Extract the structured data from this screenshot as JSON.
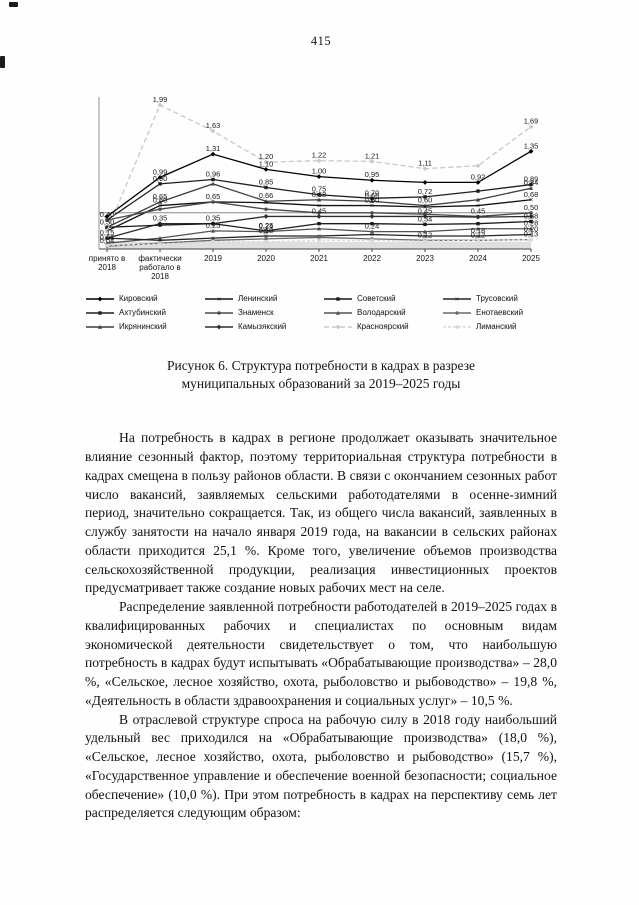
{
  "page": {
    "number": "415"
  },
  "figure": {
    "caption_line1": "Рисунок 6. Структура потребности в кадрах в разрезе",
    "caption_line2": "муниципальных образований за 2019–2025 годы"
  },
  "chart_data": {
    "type": "line",
    "title": "",
    "xlabel": "",
    "ylabel": "",
    "ylim": [
      0,
      2.1
    ],
    "grid_y": [
      0.5
    ],
    "legend_position": "bottom",
    "categories": [
      "принято в 2018",
      "фактически работало в 2018",
      "2019",
      "2020",
      "2021",
      "2022",
      "2023",
      "2024",
      "2025"
    ],
    "category_labels": [
      [
        "принято в",
        "2018"
      ],
      [
        "фактически",
        "работало в",
        "2018"
      ],
      [
        "2019"
      ],
      [
        "2020"
      ],
      [
        "2021"
      ],
      [
        "2022"
      ],
      [
        "2023"
      ],
      [
        "2024"
      ],
      [
        "2025"
      ]
    ],
    "series": [
      {
        "name": "Кировский",
        "color": "#000000",
        "dash": null,
        "marker": "diamond",
        "values": [
          0.45,
          0.99,
          1.31,
          1.1,
          1.0,
          0.95,
          0.92,
          0.92,
          1.35
        ],
        "point_labels": [
          null,
          "0,99",
          "1,31",
          "1,10",
          "1,00",
          "0,95",
          null,
          "0,92",
          "1,35"
        ]
      },
      {
        "name": "Ахтубинский",
        "color": "#1f1f1f",
        "dash": null,
        "marker": "square",
        "values": [
          0.4,
          0.9,
          0.96,
          0.85,
          0.75,
          0.7,
          0.72,
          0.8,
          0.89
        ],
        "point_labels": [
          null,
          "0,90",
          "0,96",
          "0,85",
          "0,75",
          "0,70",
          "0,72",
          null,
          "0,89"
        ]
      },
      {
        "name": "Икрянинский",
        "color": "#3d3d3d",
        "dash": null,
        "marker": "triangle",
        "values": [
          0.3,
          0.65,
          0.9,
          0.66,
          0.68,
          0.66,
          0.6,
          0.68,
          0.84
        ],
        "point_labels": [
          null,
          "0,65",
          null,
          "0,66",
          "0,68",
          "0,66",
          "0,60",
          null,
          "0,84"
        ]
      },
      {
        "name": "Ленинский",
        "color": "#141414",
        "dash": null,
        "marker": "x",
        "values": [
          0.25,
          0.6,
          0.65,
          0.64,
          0.6,
          0.6,
          0.58,
          0.6,
          0.68
        ],
        "point_labels": [
          null,
          "0,60",
          "0,65",
          null,
          null,
          "0,60",
          null,
          null,
          "0,68"
        ]
      },
      {
        "name": "Знаменск",
        "color": "#4a4a4a",
        "dash": null,
        "marker": "circle",
        "values": [
          0.4,
          0.55,
          0.65,
          0.55,
          0.5,
          0.5,
          0.48,
          0.45,
          0.5
        ],
        "point_labels": [
          "0,40",
          null,
          null,
          null,
          null,
          null,
          null,
          "0,45",
          "0,50"
        ]
      },
      {
        "name": "Камызякский",
        "color": "#2e2e2e",
        "dash": null,
        "marker": "diamond",
        "values": [
          0.15,
          0.35,
          0.35,
          0.45,
          0.45,
          0.45,
          0.45,
          0.44,
          0.45
        ],
        "point_labels": [
          null,
          "0,35",
          "0,35",
          null,
          "0,45",
          null,
          "0,45",
          null,
          null
        ]
      },
      {
        "name": "Советский",
        "color": "#1a1a1a",
        "dash": null,
        "marker": "square",
        "values": [
          0.3,
          0.33,
          0.35,
          0.25,
          0.35,
          0.35,
          0.34,
          0.35,
          0.38
        ],
        "point_labels": [
          "0,30",
          null,
          null,
          "0,25",
          null,
          null,
          "0,34",
          null,
          "0,38"
        ]
      },
      {
        "name": "Володарский",
        "color": "#525252",
        "dash": null,
        "marker": "triangle",
        "values": [
          0.08,
          0.15,
          0.25,
          0.24,
          0.28,
          0.24,
          0.24,
          0.28,
          0.28
        ],
        "point_labels": [
          "0,08",
          null,
          "0,25",
          "0,24",
          null,
          "0,24",
          null,
          null,
          "0,28"
        ]
      },
      {
        "name": "Красноярский",
        "color": "#c8c8c8",
        "dash": "5 3",
        "marker": "diamond",
        "values": [
          0.25,
          1.99,
          1.63,
          1.2,
          1.22,
          1.21,
          1.11,
          1.15,
          1.69
        ],
        "point_labels": [
          null,
          "1,99",
          "1,63",
          "1,20",
          "1,22",
          "1,21",
          "1,11",
          null,
          "1,69"
        ]
      },
      {
        "name": "Трусовский",
        "color": "#242424",
        "dash": null,
        "marker": "x",
        "values": [
          0.15,
          0.12,
          0.15,
          0.18,
          0.18,
          0.2,
          0.18,
          0.18,
          0.2
        ],
        "point_labels": [
          "0,15",
          null,
          null,
          "0,18",
          null,
          null,
          null,
          "0,18",
          "0,20"
        ]
      },
      {
        "name": "Енотаевский",
        "color": "#6b6b6b",
        "dash": null,
        "marker": "circle",
        "values": [
          0.04,
          0.08,
          0.12,
          0.14,
          0.16,
          0.14,
          0.12,
          0.12,
          0.13
        ],
        "point_labels": [
          "0,04",
          null,
          null,
          null,
          null,
          null,
          "0,12",
          "0,12",
          "0,13"
        ]
      },
      {
        "name": "Лиманский",
        "color": "#d9d9d9",
        "dash": "3 2",
        "marker": "square",
        "values": [
          0.05,
          0.07,
          0.1,
          0.1,
          0.12,
          0.12,
          0.11,
          0.12,
          0.13
        ],
        "point_labels": [
          null,
          null,
          null,
          null,
          null,
          null,
          null,
          null,
          null
        ]
      }
    ]
  },
  "paragraphs": [
    "На потребность в кадрах в регионе продолжает оказывать значительное влияние сезонный фактор, поэтому территориальная структура потребности в кадрах смещена в пользу районов области. В связи с окончанием сезонных работ число вакансий, заявляемых сельскими работодателями в осенне-зимний период, значительно сокращается. Так, из общего числа вакансий, заявленных в службу занятости на начало января 2019 года, на вакансии в сельских районах области приходится 25,1 %. Кроме того, увеличение объемов производства сельскохозяйственной продукции, реализация инвестиционных проектов предусматривает также создание новых рабочих мест на селе.",
    "Распределение заявленной потребности работодателей в 2019–2025 годах в квалифицированных рабочих и специалистах по основным видам экономической деятельности свидетельствует о том, что наибольшую потребность в кадрах будут испытывать «Обрабатывающие производства» – 28,0 %, «Сельское, лесное хозяйство, охота, рыболовство и рыбоводство» – 19,8 %, «Деятельность в области здравоохранения и социальных услуг» – 10,5 %.",
    "В отраслевой структуре спроса на рабочую силу в 2018 году наибольший удельный вес приходился на «Обрабатывающие производства» (18,0 %), «Сельское, лесное хозяйство, охота, рыболовство и рыбоводство» (15,7 %), «Государственное управление и обеспечение военной безопасности; социальное обеспечение» (10,0 %). При этом потребность в кадрах на перспективу семь лет распределяется следующим образом:"
  ]
}
